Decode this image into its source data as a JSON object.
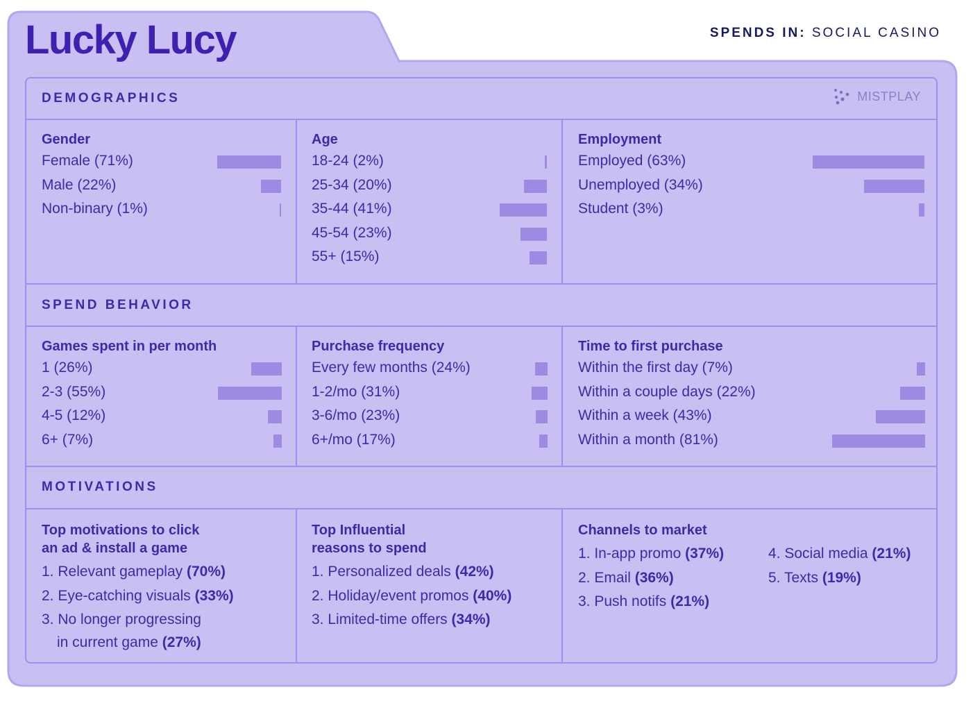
{
  "title": "Lucky Lucy",
  "spends": {
    "label": "SPENDS IN:",
    "value": "SOCIAL CASINO"
  },
  "logo": {
    "text": "MISTPLAY",
    "icon": "dots-logo-icon"
  },
  "colors": {
    "background": "#c9bff2",
    "accent": "#3d2aa8",
    "bar": "#9d8be3",
    "divider": "#a08ff0"
  },
  "demographics": {
    "title": "DEMOGRAPHICS",
    "gender": {
      "title": "Gender",
      "items": [
        {
          "label": "Female (71%)",
          "value": 71
        },
        {
          "label": "Male (22%)",
          "value": 22
        },
        {
          "label": "Non-binary (1%)",
          "value": 1
        }
      ]
    },
    "age": {
      "title": "Age",
      "items": [
        {
          "label": "18-24 (2%)",
          "value": 2
        },
        {
          "label": "25-34 (20%)",
          "value": 20
        },
        {
          "label": "35-44 (41%)",
          "value": 41
        },
        {
          "label": "45-54 (23%)",
          "value": 23
        },
        {
          "label": "55+ (15%)",
          "value": 15
        }
      ]
    },
    "employment": {
      "title": "Employment",
      "items": [
        {
          "label": "Employed (63%)",
          "value": 63
        },
        {
          "label": "Unemployed (34%)",
          "value": 34
        },
        {
          "label": "Student (3%)",
          "value": 3
        }
      ]
    }
  },
  "spend": {
    "title": "SPEND BEHAVIOR",
    "games": {
      "title": "Games spent in per month",
      "items": [
        {
          "label": "1 (26%)",
          "value": 26
        },
        {
          "label": "2-3 (55%)",
          "value": 55
        },
        {
          "label": "4-5 (12%)",
          "value": 12
        },
        {
          "label": "6+ (7%)",
          "value": 7
        }
      ]
    },
    "frequency": {
      "title": "Purchase frequency",
      "items": [
        {
          "label": "Every few months (24%)",
          "value": 24
        },
        {
          "label": "1-2/mo (31%)",
          "value": 31
        },
        {
          "label": "3-6/mo (23%)",
          "value": 23
        },
        {
          "label": "6+/mo (17%)",
          "value": 17
        }
      ]
    },
    "first_purchase": {
      "title": "Time to first purchase",
      "items": [
        {
          "label": "Within the first day (7%)",
          "value": 7
        },
        {
          "label": "Within a couple days (22%)",
          "value": 22
        },
        {
          "label": "Within a week (43%)",
          "value": 43
        },
        {
          "label": "Within a month (81%)",
          "value": 81
        }
      ]
    }
  },
  "motivations": {
    "title": "MOTIVATIONS",
    "install": {
      "title_line1": "Top motivations to click",
      "title_line2": "an ad & install a game",
      "items": [
        {
          "text": "1. Relevant gameplay ",
          "pct": "(70%)"
        },
        {
          "text": "2. Eye-catching visuals ",
          "pct": "(33%)"
        }
      ],
      "item3_line1": "3. No longer progressing",
      "item3_line2": "in current game ",
      "item3_pct": "(27%)"
    },
    "spend_reasons": {
      "title_line1": "Top Influential",
      "title_line2": "reasons to spend",
      "items": [
        {
          "text": "1. Personalized deals ",
          "pct": "(42%)"
        },
        {
          "text": "2. Holiday/event promos ",
          "pct": "(40%)"
        },
        {
          "text": "3. Limited-time offers ",
          "pct": "(34%)"
        }
      ]
    },
    "channels": {
      "title": "Channels to market",
      "left": [
        {
          "text": "1. In-app promo ",
          "pct": "(37%)"
        },
        {
          "text": "2. Email ",
          "pct": "(36%)"
        },
        {
          "text": "3. Push notifs ",
          "pct": "(21%)"
        }
      ],
      "right": [
        {
          "text": "4. Social media ",
          "pct": "(21%)"
        },
        {
          "text": "5. Texts ",
          "pct": "(19%)"
        }
      ]
    }
  }
}
